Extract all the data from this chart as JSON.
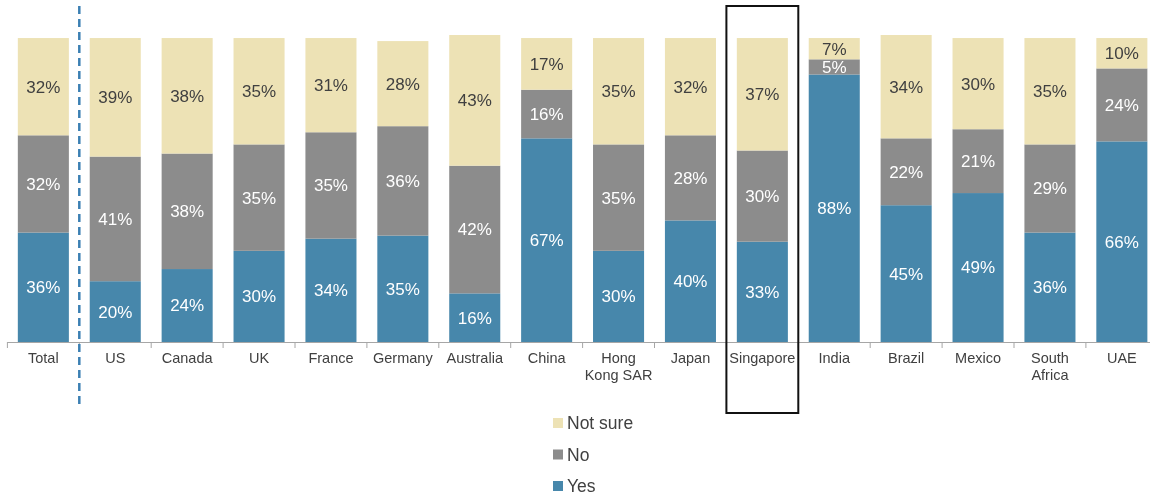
{
  "chart_data": {
    "type": "bar",
    "stacked": true,
    "legend": "bottom",
    "categories": [
      "Total",
      "US",
      "Canada",
      "UK",
      "France",
      "Germany",
      "Australia",
      "China",
      "Hong Kong SAR",
      "Japan",
      "Singapore",
      "India",
      "Brazil",
      "Mexico",
      "South Africa",
      "UAE"
    ],
    "series": [
      {
        "name": "Yes",
        "color": "#4787ab",
        "values": [
          36,
          20,
          24,
          30,
          34,
          35,
          16,
          67,
          30,
          40,
          33,
          88,
          45,
          49,
          36,
          66
        ],
        "value_labels": [
          "36%",
          "20%",
          "24%",
          "30%",
          "34%",
          "35%",
          "16%",
          "67%",
          "30%",
          "40%",
          "33%",
          "88%",
          "45%",
          "49%",
          "36%",
          "66%"
        ]
      },
      {
        "name": "No",
        "color": "#8c8c8c",
        "values": [
          32,
          41,
          38,
          35,
          35,
          36,
          42,
          16,
          35,
          28,
          30,
          5,
          22,
          21,
          29,
          24
        ],
        "value_labels": [
          "32%",
          "41%",
          "38%",
          "35%",
          "35%",
          "36%",
          "42%",
          "16%",
          "35%",
          "28%",
          "30%",
          "5%",
          "22%",
          "21%",
          "29%",
          "24%"
        ]
      },
      {
        "name": "Not sure",
        "color": "#ede2b5",
        "values": [
          32,
          39,
          38,
          35,
          31,
          28,
          43,
          17,
          35,
          32,
          37,
          7,
          34,
          30,
          35,
          10
        ],
        "value_labels": [
          "32%",
          "39%",
          "38%",
          "35%",
          "31%",
          "28%",
          "43%",
          "17%",
          "35%",
          "32%",
          "37%",
          "7%",
          "34%",
          "30%",
          "35%",
          "10%"
        ]
      }
    ]
  }
}
